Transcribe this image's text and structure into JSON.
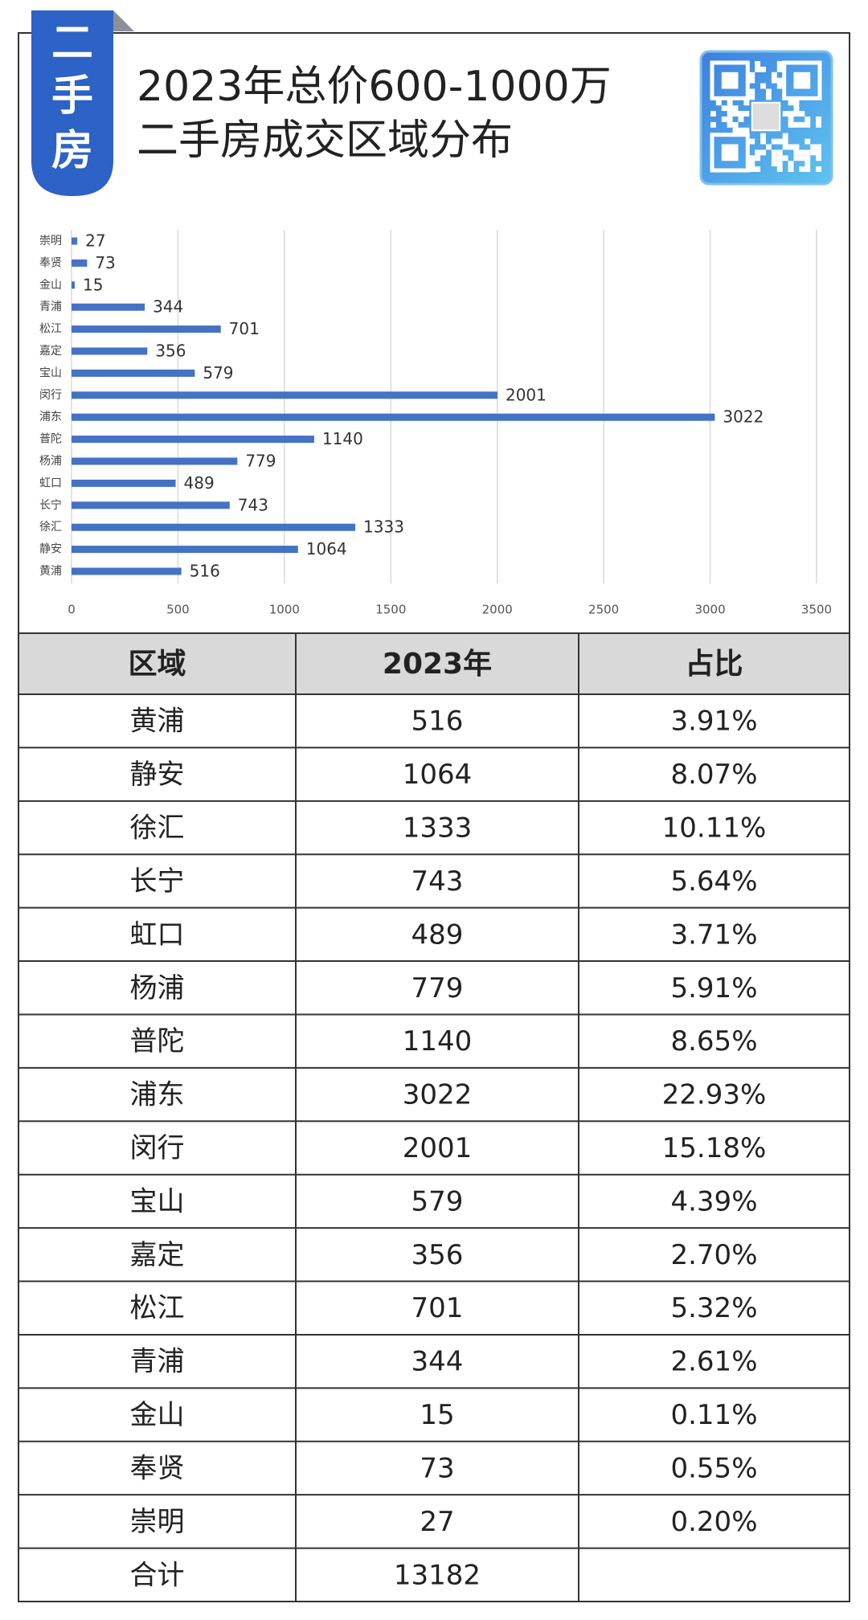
{
  "header": {
    "badge": [
      "二",
      "手",
      "房"
    ],
    "title_lines": [
      "2023年总价600-1000万",
      "二手房成交区域分布"
    ]
  },
  "chart_data": {
    "type": "bar",
    "orientation": "horizontal",
    "color": "#4472c4",
    "grid": true,
    "categories": [
      "崇明",
      "奉贤",
      "金山",
      "青浦",
      "松江",
      "嘉定",
      "宝山",
      "闵行",
      "浦东",
      "普陀",
      "杨浦",
      "虹口",
      "长宁",
      "徐汇",
      "静安",
      "黄浦"
    ],
    "values": [
      27,
      73,
      15,
      344,
      701,
      356,
      579,
      2001,
      3022,
      1140,
      779,
      489,
      743,
      1333,
      1064,
      516
    ],
    "xlim": [
      0,
      3500
    ],
    "xticks": [
      0,
      500,
      1000,
      1500,
      2000,
      2500,
      3000,
      3500
    ]
  },
  "table": {
    "columns": [
      "区域",
      "2023年",
      "占比"
    ],
    "rows": [
      [
        "黄浦",
        "516",
        "3.91%"
      ],
      [
        "静安",
        "1064",
        "8.07%"
      ],
      [
        "徐汇",
        "1333",
        "10.11%"
      ],
      [
        "长宁",
        "743",
        "5.64%"
      ],
      [
        "虹口",
        "489",
        "3.71%"
      ],
      [
        "杨浦",
        "779",
        "5.91%"
      ],
      [
        "普陀",
        "1140",
        "8.65%"
      ],
      [
        "浦东",
        "3022",
        "22.93%"
      ],
      [
        "闵行",
        "2001",
        "15.18%"
      ],
      [
        "宝山",
        "579",
        "4.39%"
      ],
      [
        "嘉定",
        "356",
        "2.70%"
      ],
      [
        "松江",
        "701",
        "5.32%"
      ],
      [
        "青浦",
        "344",
        "2.61%"
      ],
      [
        "金山",
        "15",
        "0.11%"
      ],
      [
        "奉贤",
        "73",
        "0.55%"
      ],
      [
        "崇明",
        "27",
        "0.20%"
      ],
      [
        "合计",
        "13182"
      ]
    ]
  }
}
